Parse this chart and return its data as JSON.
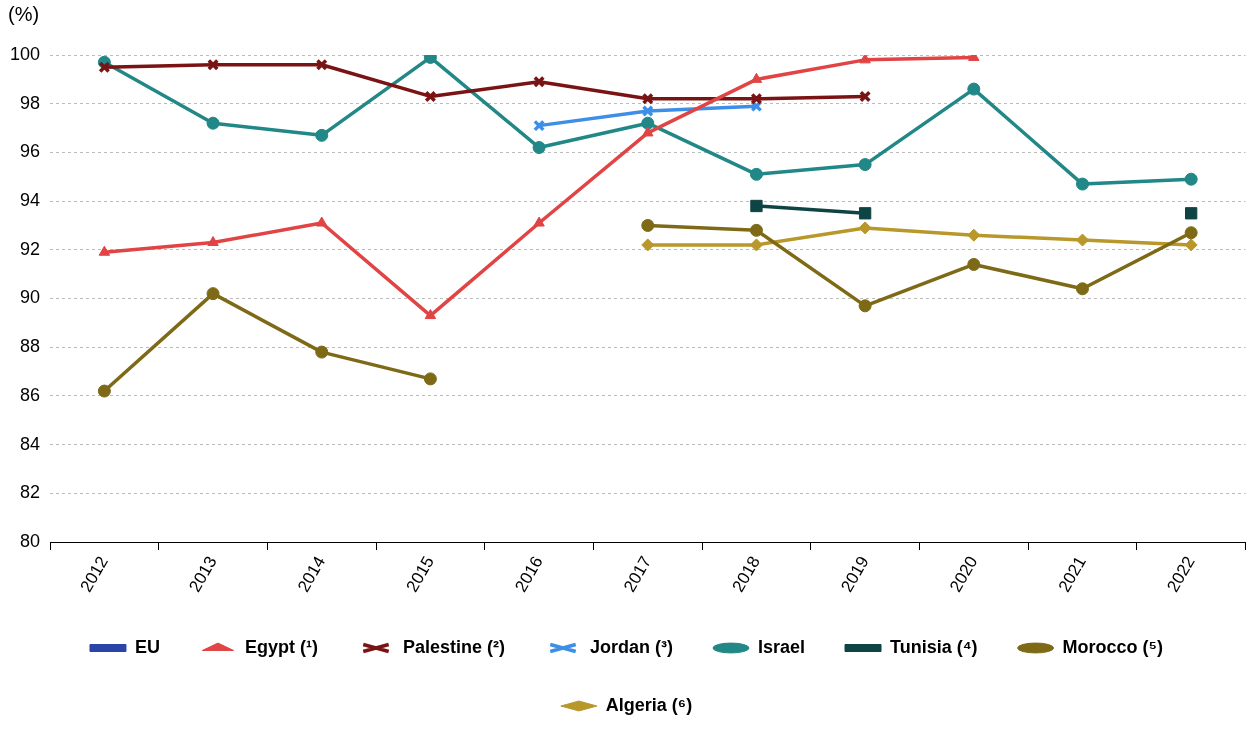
{
  "chart_data": {
    "type": "line",
    "ylabel": "(%)",
    "categories": [
      "2012",
      "2013",
      "2014",
      "2015",
      "2016",
      "2017",
      "2018",
      "2019",
      "2020",
      "2021",
      "2022"
    ],
    "ylim": [
      80,
      100
    ],
    "yticks": [
      80,
      82,
      84,
      86,
      88,
      90,
      92,
      94,
      96,
      98,
      100
    ],
    "grid": "y",
    "legend": "bottom",
    "line_style": "solid",
    "series": [
      {
        "name": "EU",
        "color": "#2a44a8",
        "marker": "square",
        "values": [
          null,
          null,
          null,
          null,
          null,
          null,
          null,
          null,
          null,
          null,
          null
        ]
      },
      {
        "name": "Egypt (¹)",
        "color": "#e04444",
        "marker": "triangle",
        "values": [
          91.9,
          92.3,
          93.1,
          89.3,
          93.1,
          96.8,
          99.0,
          99.8,
          99.9,
          null,
          null
        ]
      },
      {
        "name": "Palestine (²)",
        "color": "#7a1414",
        "marker": "cross",
        "values": [
          99.5,
          99.6,
          99.6,
          98.3,
          98.9,
          98.2,
          98.2,
          98.3,
          null,
          null,
          null
        ]
      },
      {
        "name": "Jordan (³)",
        "color": "#3d8ee6",
        "marker": "cross",
        "values": [
          null,
          null,
          null,
          null,
          97.1,
          97.7,
          97.9,
          null,
          null,
          null,
          null
        ]
      },
      {
        "name": "Israel",
        "color": "#218787",
        "marker": "circle",
        "values": [
          99.7,
          97.2,
          96.7,
          99.9,
          96.2,
          97.2,
          95.1,
          95.5,
          98.6,
          94.7,
          94.9
        ]
      },
      {
        "name": "Tunisia (⁴)",
        "color": "#0f4444",
        "marker": "square",
        "values": [
          null,
          null,
          null,
          null,
          null,
          null,
          93.8,
          93.5,
          null,
          null,
          93.5
        ]
      },
      {
        "name": "Morocco (⁵)",
        "color": "#7e6a16",
        "marker": "circle",
        "values": [
          86.2,
          90.2,
          87.8,
          86.7,
          null,
          93.0,
          92.8,
          89.7,
          91.4,
          90.4,
          92.7
        ]
      },
      {
        "name": "Algeria (⁶)",
        "color": "#b8982a",
        "marker": "diamond",
        "values": [
          null,
          null,
          null,
          null,
          null,
          92.2,
          92.2,
          92.9,
          92.6,
          92.4,
          92.2
        ]
      }
    ]
  }
}
